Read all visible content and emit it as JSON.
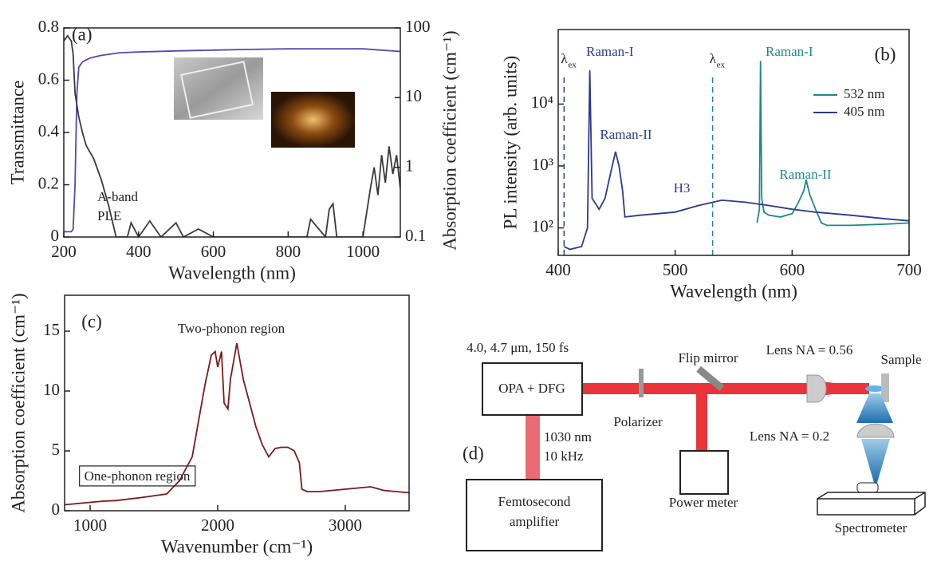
{
  "chart_data": [
    {
      "type": "line",
      "panel": "(a)",
      "xlabel": "Wavelength (nm)",
      "ylabel": "Transmittance",
      "y2label": "Absorption coefficient (cm⁻¹)",
      "xlim": [
        200,
        1100
      ],
      "xticks": [
        200,
        400,
        600,
        800,
        1000
      ],
      "ylim": [
        0,
        0.8
      ],
      "yticks": [
        0,
        0.2,
        0.4,
        0.6,
        0.8
      ],
      "y2lim": [
        0.1,
        100
      ],
      "y2ticks": [
        0.1,
        1,
        10,
        100
      ],
      "y2log": true,
      "series": [
        {
          "color": "#5546b0",
          "x": [
            200,
            210,
            220,
            225,
            230,
            235,
            240,
            250,
            270,
            300,
            350,
            400,
            500,
            600,
            700,
            800,
            900,
            1000,
            1100
          ],
          "values": [
            0.02,
            0.02,
            0.02,
            0.03,
            0.2,
            0.55,
            0.65,
            0.67,
            0.685,
            0.695,
            0.705,
            0.708,
            0.712,
            0.715,
            0.718,
            0.72,
            0.72,
            0.72,
            0.71
          ]
        },
        {
          "color": "#3a3a3a",
          "x": [
            200,
            205,
            210,
            215,
            220,
            225,
            230,
            240,
            250,
            260,
            280,
            300,
            320,
            340
          ],
          "values": [
            0.75,
            0.76,
            0.77,
            0.76,
            0.75,
            0.7,
            0.55,
            0.46,
            0.4,
            0.35,
            0.3,
            0.22,
            0.12,
            0
          ]
        },
        {
          "color": "#3a3a3a",
          "axis": "y2",
          "x": [
            340,
            370,
            380,
            400,
            430,
            460,
            500,
            520,
            560,
            600,
            700,
            850,
            860,
            900,
            910,
            920,
            930,
            1000,
            1020,
            1030,
            1040,
            1050,
            1060,
            1070,
            1080,
            1090,
            1100
          ],
          "values": [
            0.1,
            0.1,
            0.16,
            0.1,
            0.17,
            0.1,
            0.16,
            0.1,
            0.13,
            0.1,
            0.1,
            0.1,
            0.18,
            0.1,
            0.25,
            0.3,
            0.1,
            0.1,
            0.5,
            1.0,
            0.4,
            1.5,
            0.6,
            2.0,
            0.8,
            1.5,
            0.5
          ]
        }
      ],
      "annotations": [
        {
          "text": "(a)",
          "color": "#222"
        },
        {
          "text": "A-band",
          "color": "#222"
        },
        {
          "text": "PLE",
          "color": "#222"
        }
      ]
    },
    {
      "type": "line",
      "panel": "(b)",
      "xlabel": "Wavelength (nm)",
      "ylabel": "PL intensity (arb. units)",
      "xlim": [
        400,
        700
      ],
      "xticks": [
        400,
        500,
        600,
        700
      ],
      "ylim": [
        36,
        160000
      ],
      "ylog": true,
      "yticks": [
        {
          "value": 100,
          "label": "10²"
        },
        {
          "value": 1000,
          "label": "10³"
        },
        {
          "value": 10000,
          "label": "10⁴"
        }
      ],
      "legend": "upper right",
      "series": [
        {
          "name": "532 nm",
          "color": "#1b8a82",
          "x": [
            570,
            572,
            573,
            574,
            576,
            580,
            590,
            600,
            605,
            610,
            612,
            615,
            620,
            625,
            630,
            650,
            680,
            700
          ],
          "values": [
            120,
            200,
            50000,
            300,
            180,
            160,
            150,
            170,
            250,
            400,
            600,
            350,
            200,
            120,
            110,
            110,
            115,
            120
          ]
        },
        {
          "name": "405 nm",
          "color": "#2b3a8c",
          "x": [
            405,
            410,
            420,
            425,
            427,
            429,
            435,
            440,
            445,
            449,
            452,
            455,
            457,
            470,
            500,
            520,
            540,
            560,
            580,
            600,
            620,
            650,
            680,
            700
          ],
          "values": [
            50,
            45,
            50,
            100,
            35000,
            300,
            200,
            300,
            800,
            1700,
            1000,
            400,
            150,
            160,
            180,
            230,
            280,
            260,
            230,
            200,
            180,
            160,
            140,
            130
          ]
        }
      ],
      "vlines": [
        {
          "x": 405,
          "color": "#2b3a8c",
          "symbol": "λ",
          "subscript": "ex"
        },
        {
          "x": 532,
          "color": "#1b8a82",
          "symbol": "λ",
          "subscript": "ex"
        }
      ],
      "annotations": [
        {
          "text": "(b)",
          "color": "#222"
        },
        {
          "text": "Raman-I",
          "color": "#2b3a8c"
        },
        {
          "text": "Raman-I",
          "color": "#1b8a82"
        },
        {
          "text": "Raman-II",
          "color": "#2b3a8c"
        },
        {
          "text": "Raman-II",
          "color": "#1b8a82"
        },
        {
          "text": "H3",
          "color": "#2b3a8c"
        }
      ]
    },
    {
      "type": "line",
      "panel": "(c)",
      "xlabel": "Wavenumber (cm⁻¹)",
      "ylabel": "Absorption coefficient (cm⁻¹)",
      "xlim": [
        800,
        3500
      ],
      "xticks": [
        1000,
        2000,
        3000
      ],
      "ylim": [
        0,
        18
      ],
      "yticks": [
        0,
        5,
        10,
        15
      ],
      "series": [
        {
          "color": "#7a1a1a",
          "x": [
            800,
            900,
            1000,
            1100,
            1200,
            1400,
            1600,
            1700,
            1800,
            1850,
            1900,
            1950,
            1980,
            2000,
            2030,
            2050,
            2080,
            2100,
            2150,
            2200,
            2250,
            2300,
            2350,
            2400,
            2450,
            2500,
            2550,
            2600,
            2640,
            2660,
            2700,
            2800,
            3000,
            3200,
            3300,
            3500
          ],
          "values": [
            0.5,
            0.6,
            0.7,
            0.8,
            0.85,
            1.1,
            1.4,
            2.5,
            4.5,
            7.5,
            10.5,
            13,
            13.3,
            12,
            13.3,
            9,
            8.5,
            11,
            14,
            11,
            9,
            7,
            5.5,
            4.5,
            5.2,
            5.3,
            5.3,
            5.0,
            4,
            1.8,
            1.6,
            1.6,
            1.8,
            2.0,
            1.7,
            1.5
          ]
        }
      ],
      "annotations": [
        {
          "text": "(c)",
          "color": "#222"
        },
        {
          "text": "Two-phonon region",
          "color": "#222"
        },
        {
          "text": "One-phonon region",
          "color": "#222",
          "boxed": true
        }
      ]
    }
  ],
  "diagram": {
    "label": "(d)",
    "source": "4.0, 4.7 μm, 150 fs",
    "opa": "OPA + DFG",
    "pump": [
      "1030 nm",
      "10 kHz"
    ],
    "amplifier": [
      "Femtosecond",
      "amplifier"
    ],
    "polarizer": "Polarizer",
    "mirror": "Flip mirror",
    "meter": "Power meter",
    "lens1": "Lens NA = 0.56",
    "sample": "Sample",
    "lens2": "Lens NA = 0.2",
    "spectrometer": "Spectrometer"
  }
}
